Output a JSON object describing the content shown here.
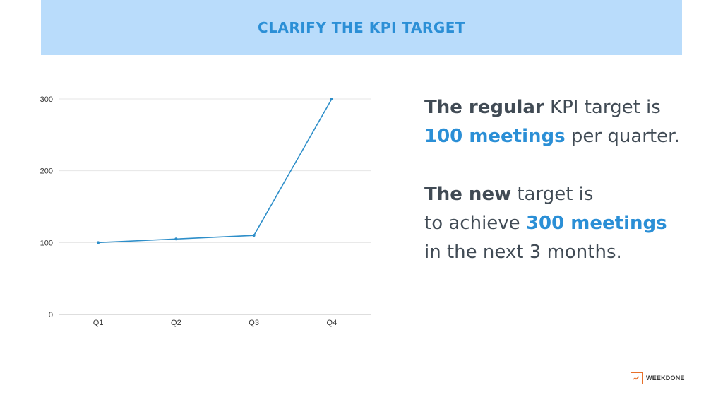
{
  "header": {
    "title": "CLARIFY THE KPI TARGET"
  },
  "chart_data": {
    "type": "line",
    "categories": [
      "Q1",
      "Q2",
      "Q3",
      "Q4"
    ],
    "values": [
      100,
      105,
      110,
      300
    ],
    "ylim": [
      0,
      300
    ],
    "yticks": [
      0,
      100,
      200,
      300
    ],
    "grid": true,
    "legend": "none",
    "color": "#2d8ec9"
  },
  "statement": {
    "l1_bold": "The regular",
    "l1_rest": " KPI target is",
    "l2_hl": "100 meetings",
    "l2_rest": " per quarter.",
    "l3_bold": "The new",
    "l3_rest": " target is",
    "l4_pre": "to achieve ",
    "l4_hl": "300 meetings",
    "l5": "in the next 3 months."
  },
  "logo": {
    "text": "WEEKDONE",
    "icon": "weekdone-logo-icon",
    "color": "#e8702a"
  }
}
